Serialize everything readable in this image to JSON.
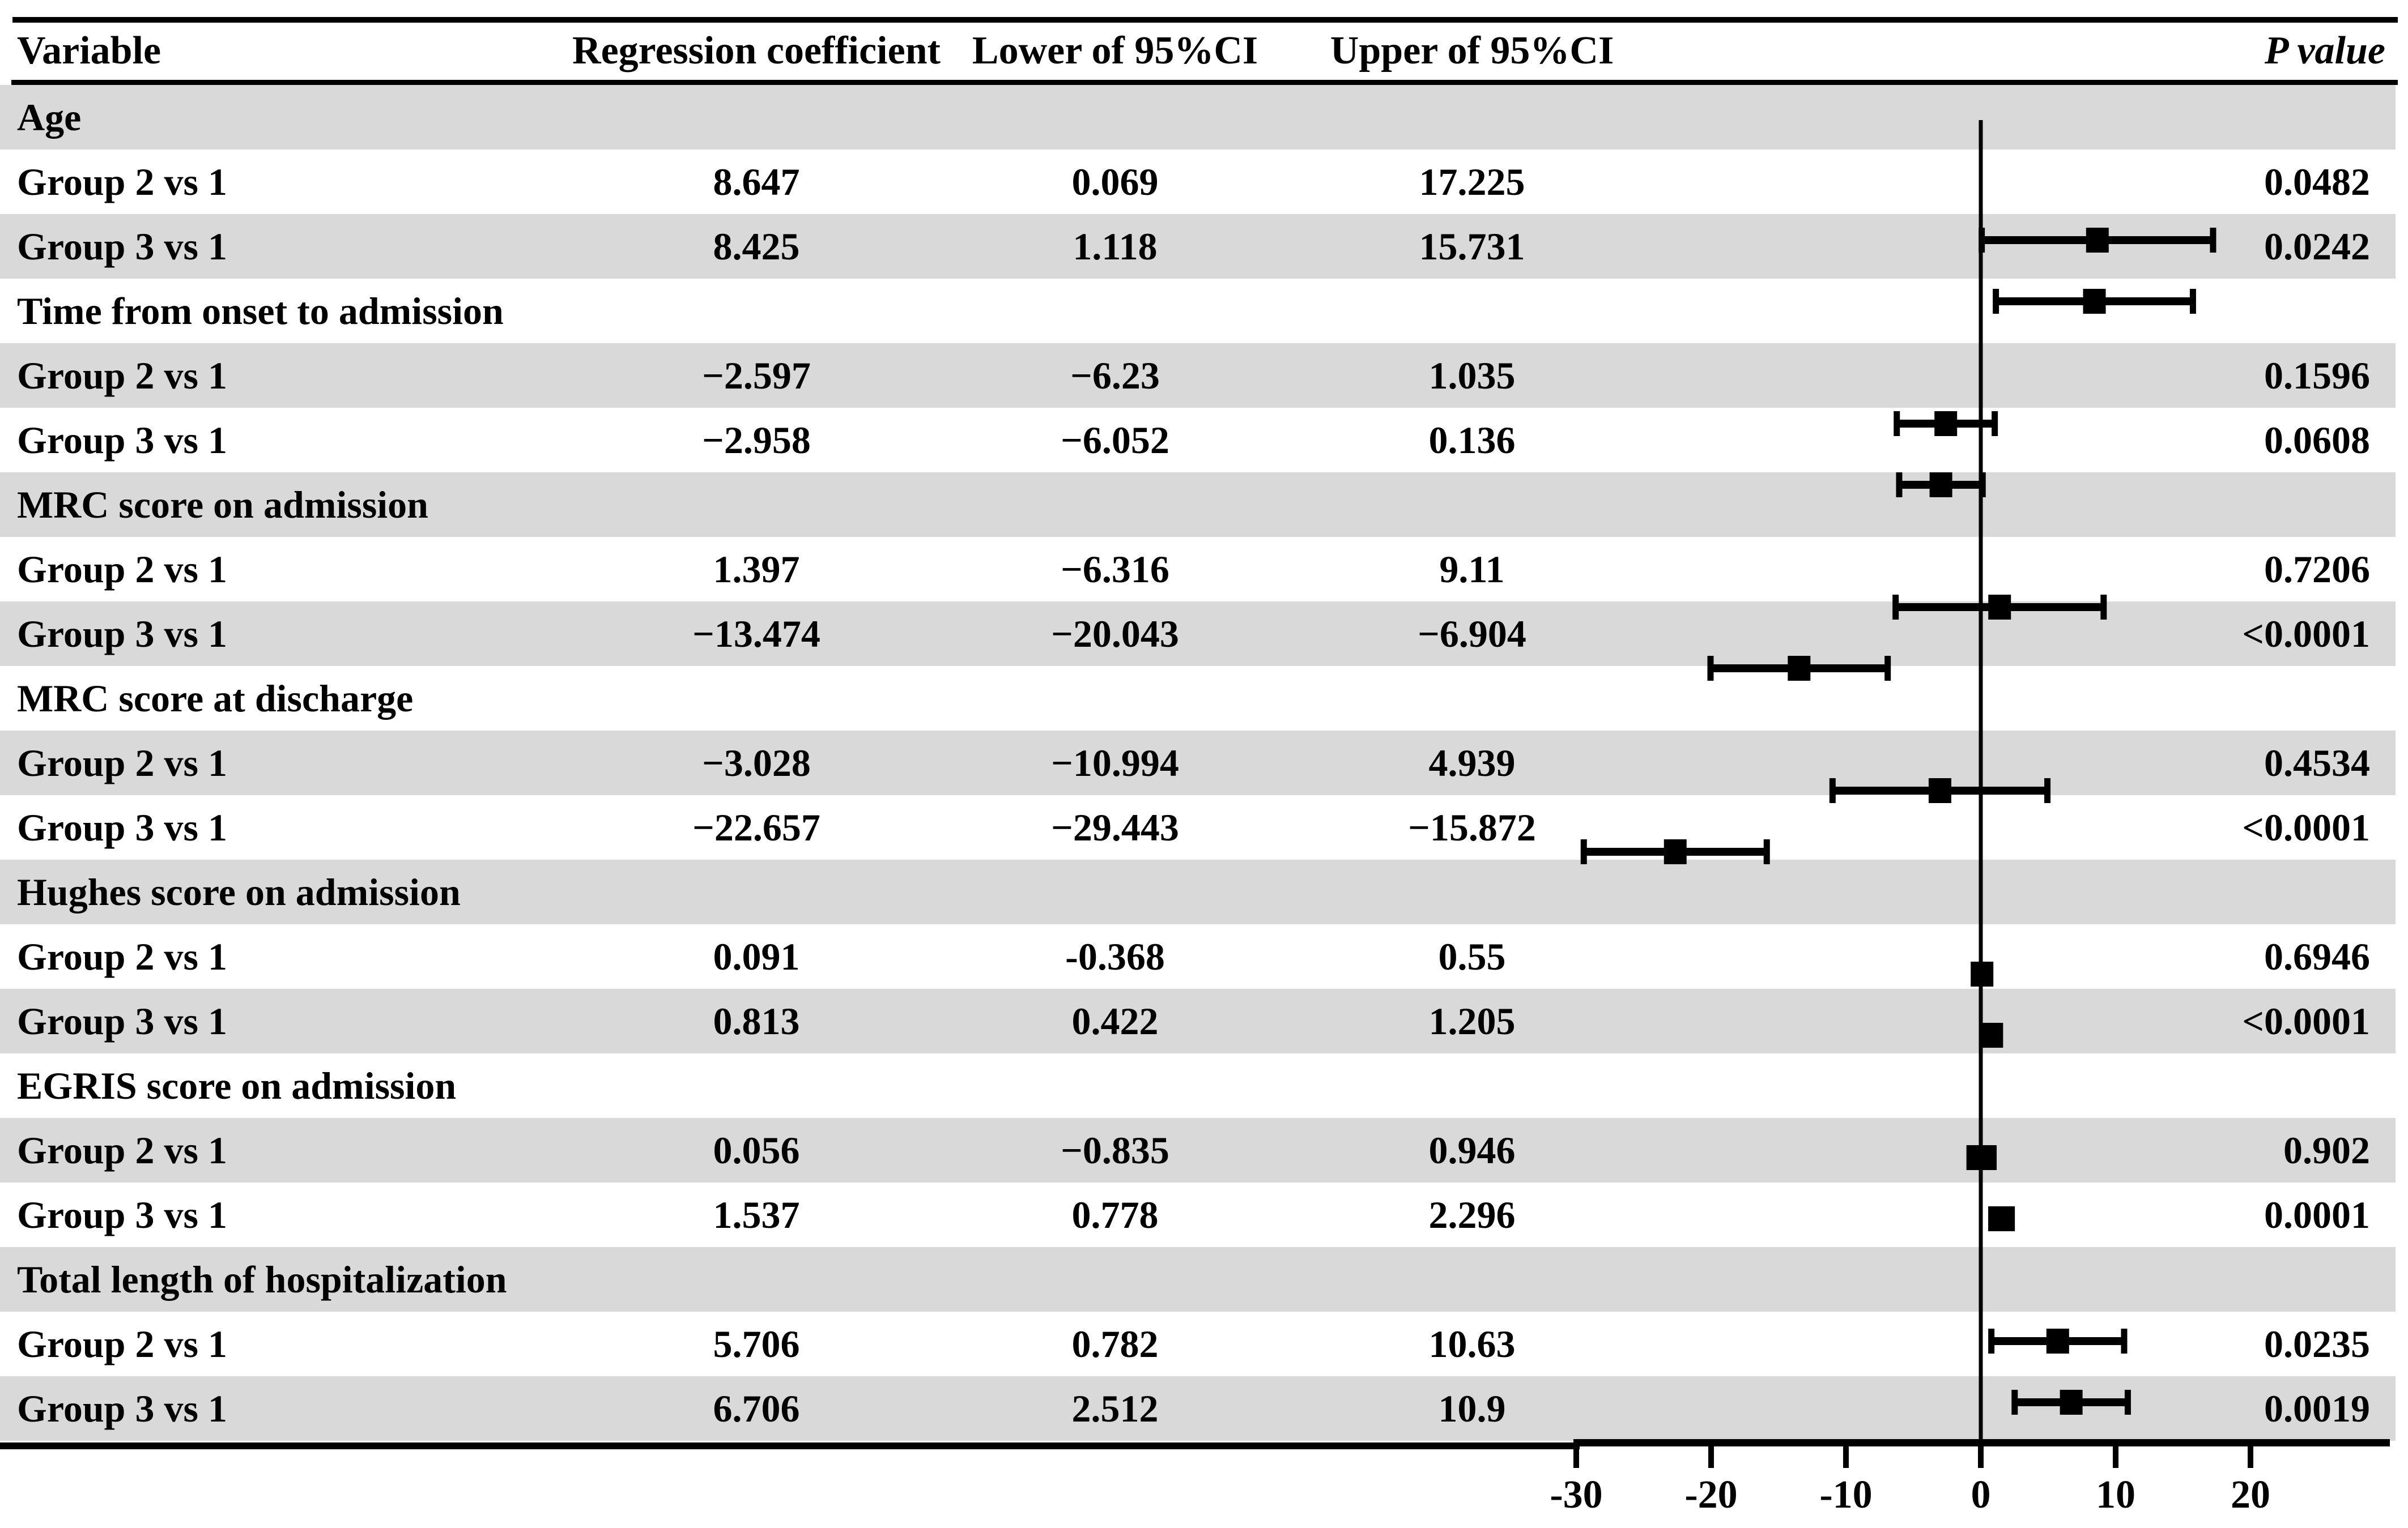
{
  "figure": {
    "header": {
      "variable": "Variable",
      "coefficient": "Regression coefficient",
      "lower": "Lower of 95%CI",
      "upper": "Upper of 95%CI",
      "p": "P value"
    },
    "rows": [
      {
        "type": "section",
        "label": "Age"
      },
      {
        "type": "data",
        "label": "Group 2 vs 1",
        "coef": "8.647",
        "lower": "0.069",
        "upper": "17.225",
        "p": "0.0482",
        "values": {
          "coef": 8.647,
          "lower": 0.069,
          "upper": 17.225
        }
      },
      {
        "type": "data",
        "label": "Group 3 vs 1",
        "coef": "8.425",
        "lower": "1.118",
        "upper": "15.731",
        "p": "0.0242",
        "values": {
          "coef": 8.425,
          "lower": 1.118,
          "upper": 15.731
        }
      },
      {
        "type": "section",
        "label": "Time from onset to admission"
      },
      {
        "type": "data",
        "label": "Group 2 vs 1",
        "coef": "−2.597",
        "lower": "−6.23",
        "upper": "1.035",
        "p": "0.1596",
        "values": {
          "coef": -2.597,
          "lower": -6.23,
          "upper": 1.035
        }
      },
      {
        "type": "data",
        "label": "Group 3 vs 1",
        "coef": "−2.958",
        "lower": "−6.052",
        "upper": "0.136",
        "p": "0.0608",
        "values": {
          "coef": -2.958,
          "lower": -6.052,
          "upper": 0.136
        }
      },
      {
        "type": "section",
        "label": "MRC score on admission"
      },
      {
        "type": "data",
        "label": "Group 2 vs 1",
        "coef": "1.397",
        "lower": "−6.316",
        "upper": "9.11",
        "p": "0.7206",
        "values": {
          "coef": 1.397,
          "lower": -6.316,
          "upper": 9.11
        }
      },
      {
        "type": "data",
        "label": "Group 3 vs 1",
        "coef": "−13.474",
        "lower": "−20.043",
        "upper": "−6.904",
        "p": "<0.0001",
        "values": {
          "coef": -13.474,
          "lower": -20.043,
          "upper": -6.904
        }
      },
      {
        "type": "section",
        "label": "MRC score at discharge"
      },
      {
        "type": "data",
        "label": "Group 2 vs 1",
        "coef": "−3.028",
        "lower": "−10.994",
        "upper": "4.939",
        "p": "0.4534",
        "values": {
          "coef": -3.028,
          "lower": -10.994,
          "upper": 4.939
        }
      },
      {
        "type": "data",
        "label": "Group 3 vs 1",
        "coef": "−22.657",
        "lower": "−29.443",
        "upper": "−15.872",
        "p": "<0.0001",
        "values": {
          "coef": -22.657,
          "lower": -29.443,
          "upper": -15.872
        }
      },
      {
        "type": "section",
        "label": "Hughes score on admission"
      },
      {
        "type": "data",
        "label": "Group 2 vs 1",
        "coef": "0.091",
        "lower": "-0.368",
        "upper": "0.55",
        "p": "0.6946",
        "values": {
          "coef": 0.091,
          "lower": -0.368,
          "upper": 0.55
        }
      },
      {
        "type": "data",
        "label": "Group 3 vs 1",
        "coef": "0.813",
        "lower": "0.422",
        "upper": "1.205",
        "p": "<0.0001",
        "values": {
          "coef": 0.813,
          "lower": 0.422,
          "upper": 1.205
        }
      },
      {
        "type": "section",
        "label": "EGRIS score on admission"
      },
      {
        "type": "data",
        "label": "Group 2 vs 1",
        "coef": "0.056",
        "lower": "−0.835",
        "upper": "0.946",
        "p": "0.902",
        "values": {
          "coef": 0.056,
          "lower": -0.835,
          "upper": 0.946
        }
      },
      {
        "type": "data",
        "label": "Group 3 vs 1",
        "coef": "1.537",
        "lower": "0.778",
        "upper": "2.296",
        "p": "0.0001",
        "values": {
          "coef": 1.537,
          "lower": 0.778,
          "upper": 2.296
        }
      },
      {
        "type": "section",
        "label": "Total length of hospitalization"
      },
      {
        "type": "data",
        "label": "Group 2 vs 1",
        "coef": "5.706",
        "lower": "0.782",
        "upper": "10.63",
        "p": "0.0235",
        "values": {
          "coef": 5.706,
          "lower": 0.782,
          "upper": 10.63
        }
      },
      {
        "type": "data",
        "label": "Group 3 vs 1",
        "coef": "6.706",
        "lower": "2.512",
        "upper": "10.9",
        "p": "0.0019",
        "values": {
          "coef": 6.706,
          "lower": 2.512,
          "upper": 10.9
        }
      }
    ],
    "axis": {
      "tick_labels": [
        "-30",
        "-20",
        "-10",
        "0",
        "10",
        "20"
      ],
      "tick_values": [
        -30,
        -20,
        -10,
        0,
        10,
        20
      ]
    },
    "colors": {
      "background": "#ffffff",
      "stripe": "#d9d9d9",
      "ink": "#000000"
    }
  },
  "chart_data": {
    "type": "scatter",
    "variant": "forest-plot",
    "title": "",
    "xlabel": "",
    "ylabel": "",
    "x_ticks": [
      -30,
      -20,
      -10,
      0,
      10,
      20
    ],
    "xlim": [
      -31,
      26
    ],
    "grid": false,
    "legend": "none",
    "reference_line_x": 0,
    "columns": [
      "Variable",
      "Regression coefficient",
      "Lower of 95%CI",
      "Upper of 95%CI",
      "P value"
    ],
    "series": [
      {
        "variable": "Age",
        "comparison": "Group 2 vs 1",
        "coefficient": 8.647,
        "ci_lower": 0.069,
        "ci_upper": 17.225,
        "p_value": "0.0482"
      },
      {
        "variable": "Age",
        "comparison": "Group 3 vs 1",
        "coefficient": 8.425,
        "ci_lower": 1.118,
        "ci_upper": 15.731,
        "p_value": "0.0242"
      },
      {
        "variable": "Time from onset to admission",
        "comparison": "Group 2 vs 1",
        "coefficient": -2.597,
        "ci_lower": -6.23,
        "ci_upper": 1.035,
        "p_value": "0.1596"
      },
      {
        "variable": "Time from onset to admission",
        "comparison": "Group 3 vs 1",
        "coefficient": -2.958,
        "ci_lower": -6.052,
        "ci_upper": 0.136,
        "p_value": "0.0608"
      },
      {
        "variable": "MRC score on admission",
        "comparison": "Group 2 vs 1",
        "coefficient": 1.397,
        "ci_lower": -6.316,
        "ci_upper": 9.11,
        "p_value": "0.7206"
      },
      {
        "variable": "MRC score on admission",
        "comparison": "Group 3 vs 1",
        "coefficient": -13.474,
        "ci_lower": -20.043,
        "ci_upper": -6.904,
        "p_value": "<0.0001"
      },
      {
        "variable": "MRC score at discharge",
        "comparison": "Group 2 vs 1",
        "coefficient": -3.028,
        "ci_lower": -10.994,
        "ci_upper": 4.939,
        "p_value": "0.4534"
      },
      {
        "variable": "MRC score at discharge",
        "comparison": "Group 3 vs 1",
        "coefficient": -22.657,
        "ci_lower": -29.443,
        "ci_upper": -15.872,
        "p_value": "<0.0001"
      },
      {
        "variable": "Hughes score on admission",
        "comparison": "Group 2 vs 1",
        "coefficient": 0.091,
        "ci_lower": -0.368,
        "ci_upper": 0.55,
        "p_value": "0.6946"
      },
      {
        "variable": "Hughes score on admission",
        "comparison": "Group 3 vs 1",
        "coefficient": 0.813,
        "ci_lower": 0.422,
        "ci_upper": 1.205,
        "p_value": "<0.0001"
      },
      {
        "variable": "EGRIS score on admission",
        "comparison": "Group 2 vs 1",
        "coefficient": 0.056,
        "ci_lower": -0.835,
        "ci_upper": 0.946,
        "p_value": "0.902"
      },
      {
        "variable": "EGRIS score on admission",
        "comparison": "Group 3 vs 1",
        "coefficient": 1.537,
        "ci_lower": 0.778,
        "ci_upper": 2.296,
        "p_value": "0.0001"
      },
      {
        "variable": "Total length of hospitalization",
        "comparison": "Group 2 vs 1",
        "coefficient": 5.706,
        "ci_lower": 0.782,
        "ci_upper": 10.63,
        "p_value": "0.0235"
      },
      {
        "variable": "Total length of hospitalization",
        "comparison": "Group 3 vs 1",
        "coefficient": 6.706,
        "ci_lower": 2.512,
        "ci_upper": 10.9,
        "p_value": "0.0019"
      }
    ]
  }
}
